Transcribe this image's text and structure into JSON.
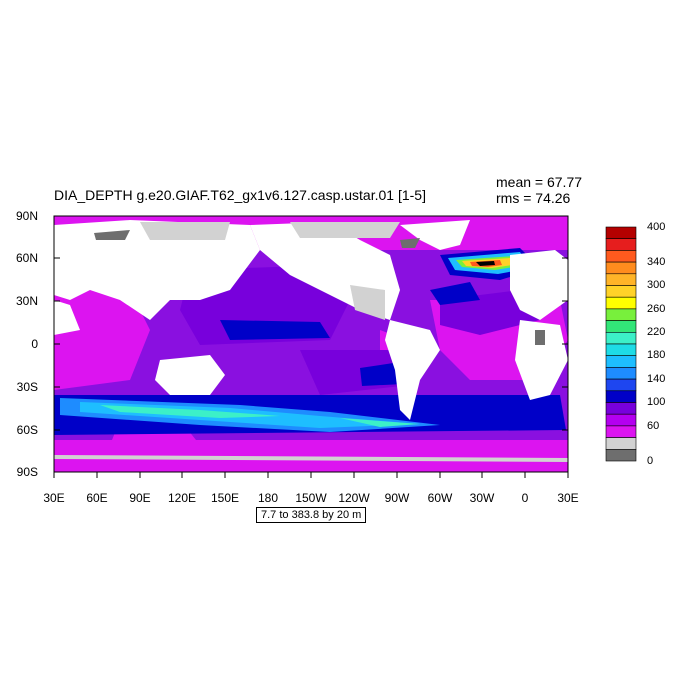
{
  "plot": {
    "title": "DIA_DEPTH g.e20.GIAF.T62_gx1v6.127.casp.ustar.01 [1-5]",
    "mean_label": "mean = 67.77",
    "rms_label": "rms = 74.26",
    "subtitle": "7.7 to 383.8 by 20 m"
  },
  "axes": {
    "x_ticks": [
      "30E",
      "60E",
      "90E",
      "120E",
      "150E",
      "180",
      "150W",
      "120W",
      "90W",
      "60W",
      "30W",
      "0",
      "30E"
    ],
    "y_ticks": [
      "90N",
      "60N",
      "30N",
      "0",
      "30S",
      "60S",
      "90S"
    ]
  },
  "colorbar": {
    "labels": [
      "400",
      "340",
      "300",
      "260",
      "220",
      "180",
      "140",
      "100",
      "60",
      "0"
    ],
    "colors": [
      "#b40000",
      "#e61e1e",
      "#ff5a1e",
      "#ff8c1e",
      "#ffb428",
      "#ffd228",
      "#ffff00",
      "#78f03c",
      "#32e678",
      "#3cf0c8",
      "#1edce6",
      "#1ebeff",
      "#1e8cff",
      "#1e46f0",
      "#0000c8",
      "#7800dc",
      "#b400f0",
      "#dc14f0",
      "#d2d2d2",
      "#6e6e6e"
    ]
  },
  "legend_colors": {
    "land": "#ffffff",
    "ice": "#d2d2d2",
    "shallow": "#6e6e6e",
    "purple": "#8a10e0",
    "magenta": "#dc14f0",
    "blue": "#0000c8",
    "cyan": "#1ebeff"
  }
}
